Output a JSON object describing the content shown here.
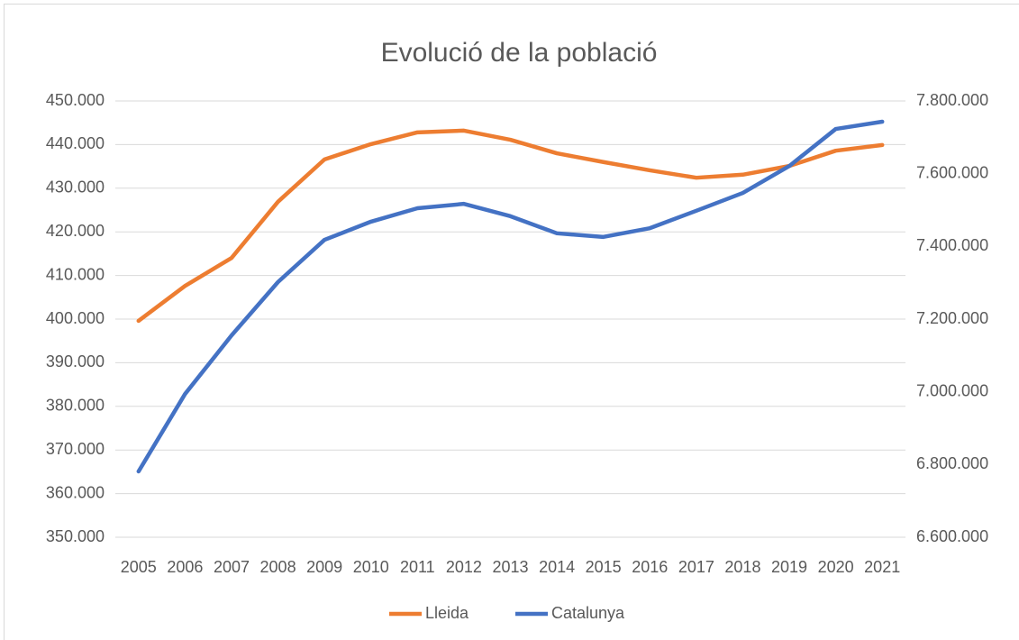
{
  "chart_data": {
    "type": "line",
    "title": "Evolució de la població",
    "categories": [
      "2005",
      "2006",
      "2007",
      "2008",
      "2009",
      "2010",
      "2011",
      "2012",
      "2013",
      "2014",
      "2015",
      "2016",
      "2017",
      "2018",
      "2019",
      "2020",
      "2021"
    ],
    "series": [
      {
        "name": "Lleida",
        "color": "#ed7d31",
        "values": [
          399600,
          407600,
          414000,
          426900,
          436600,
          440100,
          442800,
          443200,
          441100,
          438000,
          436000,
          434100,
          432400,
          433100,
          435100,
          438600,
          439900
        ]
      },
      {
        "name": "Catalunya",
        "color": "#4472c4",
        "axis": "y2",
        "values": [
          6781000,
          6994000,
          7155000,
          7302000,
          7418000,
          7468000,
          7505000,
          7517000,
          7483000,
          7436000,
          7426000,
          7450000,
          7498000,
          7547000,
          7621000,
          7723000,
          7743000
        ]
      }
    ],
    "ylim": [
      350000,
      450000
    ],
    "yticks": [
      {
        "value": 350000,
        "label": "350.000"
      },
      {
        "value": 360000,
        "label": "360.000"
      },
      {
        "value": 370000,
        "label": "370.000"
      },
      {
        "value": 380000,
        "label": "380.000"
      },
      {
        "value": 390000,
        "label": "390.000"
      },
      {
        "value": 400000,
        "label": "400.000"
      },
      {
        "value": 410000,
        "label": "410.000"
      },
      {
        "value": 420000,
        "label": "420.000"
      },
      {
        "value": 430000,
        "label": "430.000"
      },
      {
        "value": 440000,
        "label": "440.000"
      },
      {
        "value": 450000,
        "label": "450.000"
      }
    ],
    "y2lim": [
      6600000,
      7800000
    ],
    "y2ticks": [
      {
        "value": 6600000,
        "label": "6.600.000"
      },
      {
        "value": 6800000,
        "label": "6.800.000"
      },
      {
        "value": 7000000,
        "label": "7.000.000"
      },
      {
        "value": 7200000,
        "label": "7.200.000"
      },
      {
        "value": 7400000,
        "label": "7.400.000"
      },
      {
        "value": 7600000,
        "label": "7.600.000"
      },
      {
        "value": 7800000,
        "label": "7.800.000"
      }
    ],
    "grid": true,
    "legend": "bottom"
  }
}
